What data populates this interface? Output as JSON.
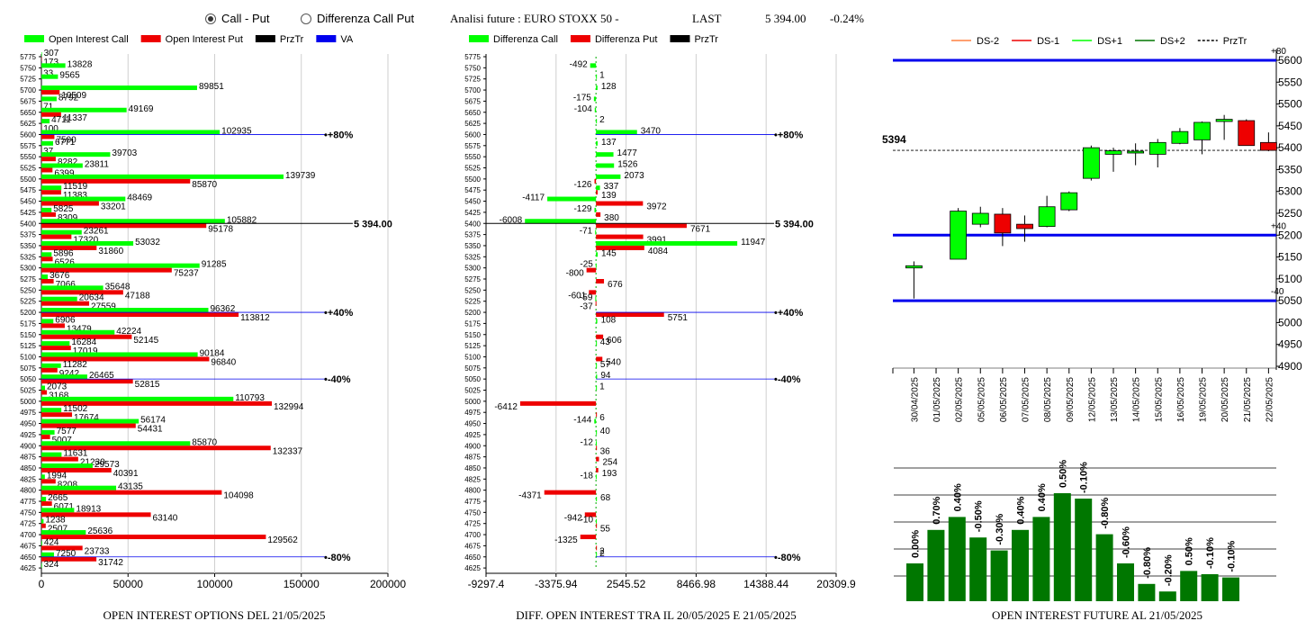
{
  "header": {
    "radio_call_put": "Call - Put",
    "radio_diff": "Differenza Call Put",
    "radio_selected": "call_put",
    "title": "Analisi future : EURO STOXX 50 -",
    "last_label": "LAST",
    "last_value": "5 394.00",
    "last_change": "-0.24%"
  },
  "colors": {
    "green": "#00ff00",
    "red": "#ee0000",
    "black": "#000000",
    "blue": "#0000ee",
    "darkgreen": "#007700",
    "orange": "#ff8040"
  },
  "chart_data": [
    {
      "type": "bar",
      "orientation": "horizontal",
      "caption": "OPEN INTEREST OPTIONS DEL 21/05/2025",
      "legend": [
        {
          "name": "Open Interest Call",
          "color": "#00ff00"
        },
        {
          "name": "Open Interest Put",
          "color": "#ee0000"
        },
        {
          "name": "PrzTr",
          "color": "#000000"
        },
        {
          "name": "VA",
          "color": "#0000ee"
        }
      ],
      "strikes": [
        5775,
        5750,
        5725,
        5700,
        5675,
        5650,
        5625,
        5600,
        5575,
        5550,
        5525,
        5500,
        5475,
        5450,
        5425,
        5400,
        5375,
        5350,
        5325,
        5300,
        5275,
        5250,
        5225,
        5200,
        5175,
        5150,
        5125,
        5100,
        5075,
        5050,
        5025,
        5000,
        4975,
        4950,
        4925,
        4900,
        4875,
        4850,
        4825,
        4800,
        4775,
        4750,
        4725,
        4700,
        4675,
        4650,
        4625
      ],
      "series": [
        {
          "name": "Open Interest Call",
          "values": [
            307,
            13828,
            9565,
            89851,
            8792,
            49169,
            4711,
            102935,
            6771,
            39703,
            23811,
            139739,
            11519,
            48469,
            5825,
            105882,
            23261,
            53032,
            5896,
            91285,
            3676,
            35648,
            20634,
            96362,
            6906,
            42224,
            16284,
            90184,
            11282,
            26465,
            2073,
            110793,
            11502,
            56174,
            7577,
            85870,
            11631,
            29573,
            1994,
            43135,
            2665,
            18913,
            1238,
            25636,
            424,
            7250,
            324
          ]
        },
        {
          "name": "Open Interest Put",
          "values": [
            173,
            33,
            0,
            10509,
            71,
            11337,
            100,
            7500,
            37,
            8282,
            6399,
            85870,
            11383,
            33201,
            8309,
            95178,
            17320,
            31860,
            6526,
            75237,
            7066,
            47188,
            27559,
            113812,
            13479,
            52145,
            17019,
            96840,
            9242,
            52815,
            3168,
            132994,
            17674,
            54431,
            5007,
            132337,
            21230,
            40391,
            8208,
            104098,
            6071,
            63140,
            2507,
            129562,
            23733,
            31742,
            0
          ]
        }
      ],
      "xticks": [
        "0",
        "50000",
        "100000",
        "150000",
        "200000"
      ],
      "xlim": [
        0,
        200000
      ],
      "prztr_label": "5 394.00",
      "va_labels": [
        {
          "strike": 5600,
          "text": "+80%"
        },
        {
          "strike": 5200,
          "text": "+40%"
        },
        {
          "strike": 5050,
          "text": "-40%"
        },
        {
          "strike": 4650,
          "text": "-80%"
        }
      ]
    },
    {
      "type": "bar",
      "orientation": "horizontal",
      "caption": "DIFF. OPEN INTEREST TRA IL 20/05/2025 E 21/05/2025",
      "legend": [
        {
          "name": "Differenza Call",
          "color": "#00ff00"
        },
        {
          "name": "Differenza Put",
          "color": "#ee0000"
        },
        {
          "name": "PrzTr",
          "color": "#000000"
        }
      ],
      "strikes": [
        5775,
        5750,
        5725,
        5700,
        5675,
        5650,
        5625,
        5600,
        5575,
        5550,
        5525,
        5500,
        5475,
        5450,
        5425,
        5400,
        5375,
        5350,
        5325,
        5300,
        5275,
        5250,
        5225,
        5200,
        5175,
        5150,
        5125,
        5100,
        5075,
        5050,
        5025,
        5000,
        4975,
        4950,
        4925,
        4900,
        4875,
        4850,
        4825,
        4800,
        4775,
        4750,
        4725,
        4700,
        4675,
        4650,
        4625
      ],
      "items": [
        {
          "strike": 5750,
          "value": -492,
          "series": "call"
        },
        {
          "strike": 5725,
          "value": 1,
          "series": "call"
        },
        {
          "strike": 5700,
          "value": 128,
          "series": "call"
        },
        {
          "strike": 5675,
          "value": -175,
          "series": "call"
        },
        {
          "strike": 5650,
          "value": -104,
          "series": "call"
        },
        {
          "strike": 5625,
          "value": 2,
          "series": "call"
        },
        {
          "strike": 5600,
          "value": 3470,
          "series": "call"
        },
        {
          "strike": 5575,
          "value": 137,
          "series": "call"
        },
        {
          "strike": 5550,
          "value": 1477,
          "series": "call"
        },
        {
          "strike": 5525,
          "value": 1526,
          "series": "call"
        },
        {
          "strike": 5500,
          "value": 2073,
          "series": "call"
        },
        {
          "strike": 5500,
          "value": -126,
          "series": "put"
        },
        {
          "strike": 5475,
          "value": 337,
          "series": "call"
        },
        {
          "strike": 5475,
          "value": 139,
          "series": "put"
        },
        {
          "strike": 5450,
          "value": -4117,
          "series": "call"
        },
        {
          "strike": 5450,
          "value": 3972,
          "series": "put"
        },
        {
          "strike": 5425,
          "value": -129,
          "series": "call"
        },
        {
          "strike": 5425,
          "value": 380,
          "series": "put"
        },
        {
          "strike": 5400,
          "value": -6008,
          "series": "call"
        },
        {
          "strike": 5400,
          "value": 7671,
          "series": "put"
        },
        {
          "strike": 5375,
          "value": -71,
          "series": "call"
        },
        {
          "strike": 5375,
          "value": 3991,
          "series": "put"
        },
        {
          "strike": 5350,
          "value": 11947,
          "series": "call"
        },
        {
          "strike": 5350,
          "value": 4084,
          "series": "put"
        },
        {
          "strike": 5325,
          "value": 145,
          "series": "call"
        },
        {
          "strike": 5300,
          "value": -25,
          "series": "call"
        },
        {
          "strike": 5300,
          "value": -800,
          "series": "put"
        },
        {
          "strike": 5275,
          "value": 676,
          "series": "put"
        },
        {
          "strike": 5250,
          "value": -601,
          "series": "put"
        },
        {
          "strike": 5225,
          "value": -59,
          "series": "call"
        },
        {
          "strike": 5225,
          "value": -37,
          "series": "put"
        },
        {
          "strike": 5200,
          "value": 5751,
          "series": "put"
        },
        {
          "strike": 5175,
          "value": 108,
          "series": "call"
        },
        {
          "strike": 5150,
          "value": 606,
          "series": "put"
        },
        {
          "strike": 5125,
          "value": 43,
          "series": "call"
        },
        {
          "strike": 5100,
          "value": 540,
          "series": "put"
        },
        {
          "strike": 5075,
          "value": 57,
          "series": "call"
        },
        {
          "strike": 5050,
          "value": 94,
          "series": "call"
        },
        {
          "strike": 5025,
          "value": 1,
          "series": "call"
        },
        {
          "strike": 5000,
          "value": -6412,
          "series": "put"
        },
        {
          "strike": 4975,
          "value": 6,
          "series": "put"
        },
        {
          "strike": 4950,
          "value": -144,
          "series": "call"
        },
        {
          "strike": 4925,
          "value": 40,
          "series": "call"
        },
        {
          "strike": 4900,
          "value": -12,
          "series": "call"
        },
        {
          "strike": 4900,
          "value": 36,
          "series": "put"
        },
        {
          "strike": 4875,
          "value": 254,
          "series": "put"
        },
        {
          "strike": 4850,
          "value": 193,
          "series": "put"
        },
        {
          "strike": 4825,
          "value": -18,
          "series": "call"
        },
        {
          "strike": 4800,
          "value": -4371,
          "series": "put"
        },
        {
          "strike": 4775,
          "value": 68,
          "series": "call"
        },
        {
          "strike": 4750,
          "value": -942,
          "series": "put"
        },
        {
          "strike": 4725,
          "value": -10,
          "series": "call"
        },
        {
          "strike": 4725,
          "value": 55,
          "series": "put"
        },
        {
          "strike": 4700,
          "value": -1325,
          "series": "put"
        },
        {
          "strike": 4675,
          "value": 2,
          "series": "put"
        },
        {
          "strike": 4650,
          "value": 2,
          "series": "call"
        }
      ],
      "xticks": [
        "-9297.4",
        "-3375.94",
        "2545.52",
        "8466.98",
        "14388.44",
        "20309.9"
      ],
      "xlim": [
        -9297.4,
        20309.9
      ],
      "prztr_label": "5 394.00",
      "va_labels": [
        {
          "strike": 5600,
          "text": "+80%"
        },
        {
          "strike": 5200,
          "text": "+40%"
        },
        {
          "strike": 5050,
          "text": "-40%"
        },
        {
          "strike": 4650,
          "text": "-80%"
        }
      ]
    },
    {
      "type": "candlestick",
      "legend": [
        {
          "name": "DS-2",
          "color": "#ff8040",
          "dash": false
        },
        {
          "name": "DS-1",
          "color": "#ee0000",
          "dash": false
        },
        {
          "name": "DS+1",
          "color": "#00ff00",
          "dash": false
        },
        {
          "name": "DS+2",
          "color": "#007700",
          "dash": false
        },
        {
          "name": "PrzTr",
          "color": "#000000",
          "dash": true
        }
      ],
      "dates": [
        "30/04/2025",
        "01/05/2025",
        "02/05/2025",
        "05/05/2025",
        "06/05/2025",
        "07/05/2025",
        "08/05/2025",
        "09/05/2025",
        "12/05/2025",
        "13/05/2025",
        "14/05/2025",
        "15/05/2025",
        "16/05/2025",
        "19/05/2025",
        "20/05/2025",
        "21/05/2025",
        "22/05/2025"
      ],
      "candles": [
        {
          "date": "30/04/2025",
          "open": 5125,
          "high": 5140,
          "low": 5055,
          "close": 5130
        },
        {
          "date": "02/05/2025",
          "open": 5145,
          "high": 5262,
          "low": 5145,
          "close": 5255
        },
        {
          "date": "05/05/2025",
          "open": 5225,
          "high": 5265,
          "low": 5218,
          "close": 5250
        },
        {
          "date": "06/05/2025",
          "open": 5248,
          "high": 5262,
          "low": 5175,
          "close": 5205
        },
        {
          "date": "07/05/2025",
          "open": 5225,
          "high": 5245,
          "low": 5185,
          "close": 5215
        },
        {
          "date": "08/05/2025",
          "open": 5220,
          "high": 5290,
          "low": 5218,
          "close": 5265
        },
        {
          "date": "09/05/2025",
          "open": 5258,
          "high": 5300,
          "low": 5255,
          "close": 5297
        },
        {
          "date": "12/05/2025",
          "open": 5330,
          "high": 5405,
          "low": 5325,
          "close": 5400
        },
        {
          "date": "13/05/2025",
          "open": 5385,
          "high": 5400,
          "low": 5345,
          "close": 5393
        },
        {
          "date": "14/05/2025",
          "open": 5390,
          "high": 5410,
          "low": 5360,
          "close": 5392
        },
        {
          "date": "15/05/2025",
          "open": 5385,
          "high": 5420,
          "low": 5355,
          "close": 5412
        },
        {
          "date": "16/05/2025",
          "open": 5410,
          "high": 5445,
          "low": 5408,
          "close": 5437
        },
        {
          "date": "19/05/2025",
          "open": 5418,
          "high": 5460,
          "low": 5385,
          "close": 5458
        },
        {
          "date": "20/05/2025",
          "open": 5460,
          "high": 5475,
          "low": 5418,
          "close": 5465
        },
        {
          "date": "21/05/2025",
          "open": 5462,
          "high": 5465,
          "low": 5405,
          "close": 5405
        },
        {
          "date": "22/05/2025",
          "open": 5412,
          "high": 5435,
          "low": 5392,
          "close": 5394
        }
      ],
      "ylim": [
        4900,
        5625
      ],
      "yticks": [
        5600,
        5550,
        5500,
        5450,
        5400,
        5350,
        5300,
        5250,
        5200,
        5150,
        5100,
        5050,
        5000,
        4950,
        4900
      ],
      "last_price_label": "5394",
      "last_price": 5394,
      "levels": [
        {
          "value": 5600,
          "label": "+80"
        },
        {
          "value": 5200,
          "label": "+40"
        },
        {
          "value": 5050,
          "label": "-40"
        }
      ]
    },
    {
      "type": "bar",
      "caption": "OPEN INTEREST FUTURE AL 21/05/2025",
      "values": [
        0.35,
        0.66,
        0.78,
        0.59,
        0.47,
        0.66,
        0.78,
        1.0,
        0.95,
        0.62,
        0.35,
        0.16,
        0.09,
        0.28,
        0.25,
        0.22
      ],
      "labels": [
        "0.00%",
        "0.70%",
        "0.40%",
        "-0.50%",
        "-0.30%",
        "0.40%",
        "0.40%",
        "0.50%",
        "-0.10%",
        "-0.80%",
        "-0.60%",
        "-0.80%",
        "-0.20%",
        "0.50%",
        "-0.10%",
        "-0.10%"
      ]
    }
  ]
}
